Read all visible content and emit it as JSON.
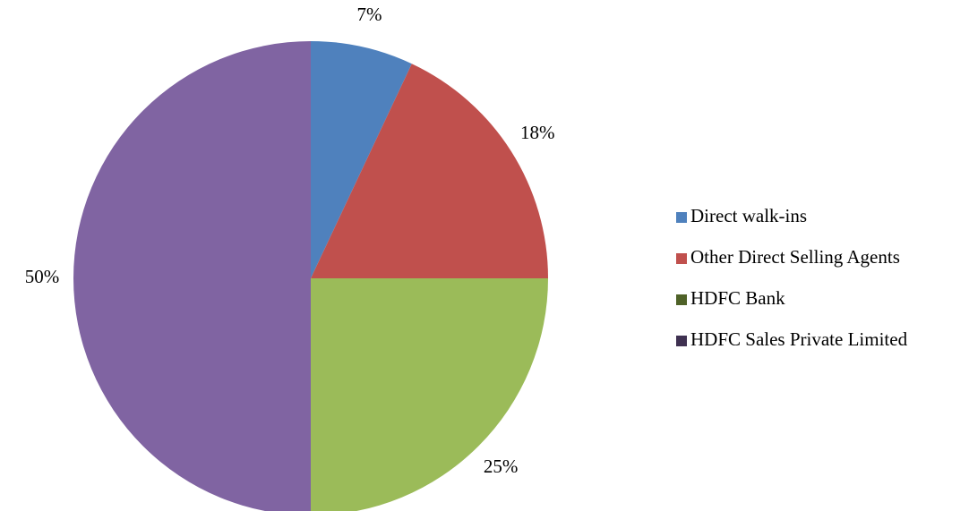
{
  "chart_data": {
    "type": "pie",
    "categories": [
      "Direct walk-ins",
      "Other Direct Selling Agents",
      "HDFC Bank",
      "HDFC Sales Private Limited"
    ],
    "values": [
      7,
      18,
      25,
      50
    ],
    "value_labels": [
      "7%",
      "18%",
      "25%",
      "50%"
    ],
    "colors": [
      "#4f81bd",
      "#c0504d",
      "#9bbb59",
      "#8064a2"
    ],
    "legend_colors": [
      "#4f81bd",
      "#c0504d",
      "#4f6228",
      "#3f3151"
    ],
    "legend": "right"
  }
}
